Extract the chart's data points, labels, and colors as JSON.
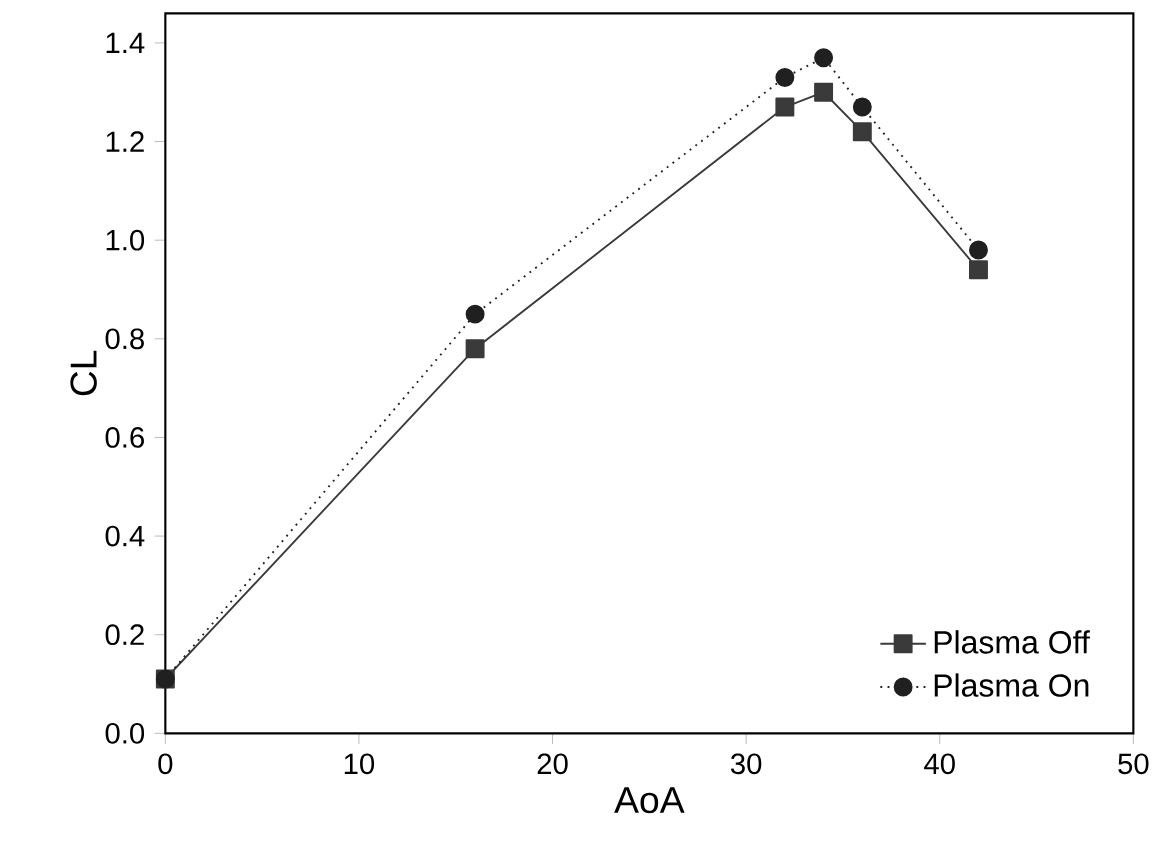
{
  "chart_data": {
    "type": "line",
    "xlabel": "AoA",
    "ylabel": "CL",
    "x": [
      0,
      16,
      32,
      34,
      36,
      42
    ],
    "series": [
      {
        "name": "Plasma Off",
        "color": "#3a3a3a",
        "marker": "square",
        "line_style": "solid",
        "values": [
          0.11,
          0.78,
          1.27,
          1.3,
          1.22,
          0.94
        ]
      },
      {
        "name": "Plasma On",
        "color": "#202020",
        "marker": "circle",
        "line_style": "dotted",
        "values": [
          0.11,
          0.85,
          1.33,
          1.37,
          1.27,
          0.98
        ]
      }
    ],
    "xlim": [
      0,
      50
    ],
    "xticks": [
      0,
      10,
      20,
      30,
      40,
      50
    ],
    "ylim": [
      0,
      1.46
    ],
    "yticks": [
      {
        "value": 0,
        "label": "0.0"
      },
      {
        "value": 0.2,
        "label": "0.2"
      },
      {
        "value": 0.4,
        "label": "0.4"
      },
      {
        "value": 0.6,
        "label": "0.6"
      },
      {
        "value": 0.8,
        "label": "0.8"
      },
      {
        "value": 1.0,
        "label": "1.0"
      },
      {
        "value": 1.2,
        "label": "1.2"
      },
      {
        "value": 1.4,
        "label": "1.4"
      }
    ],
    "grid": false,
    "legend": "bottom right"
  }
}
